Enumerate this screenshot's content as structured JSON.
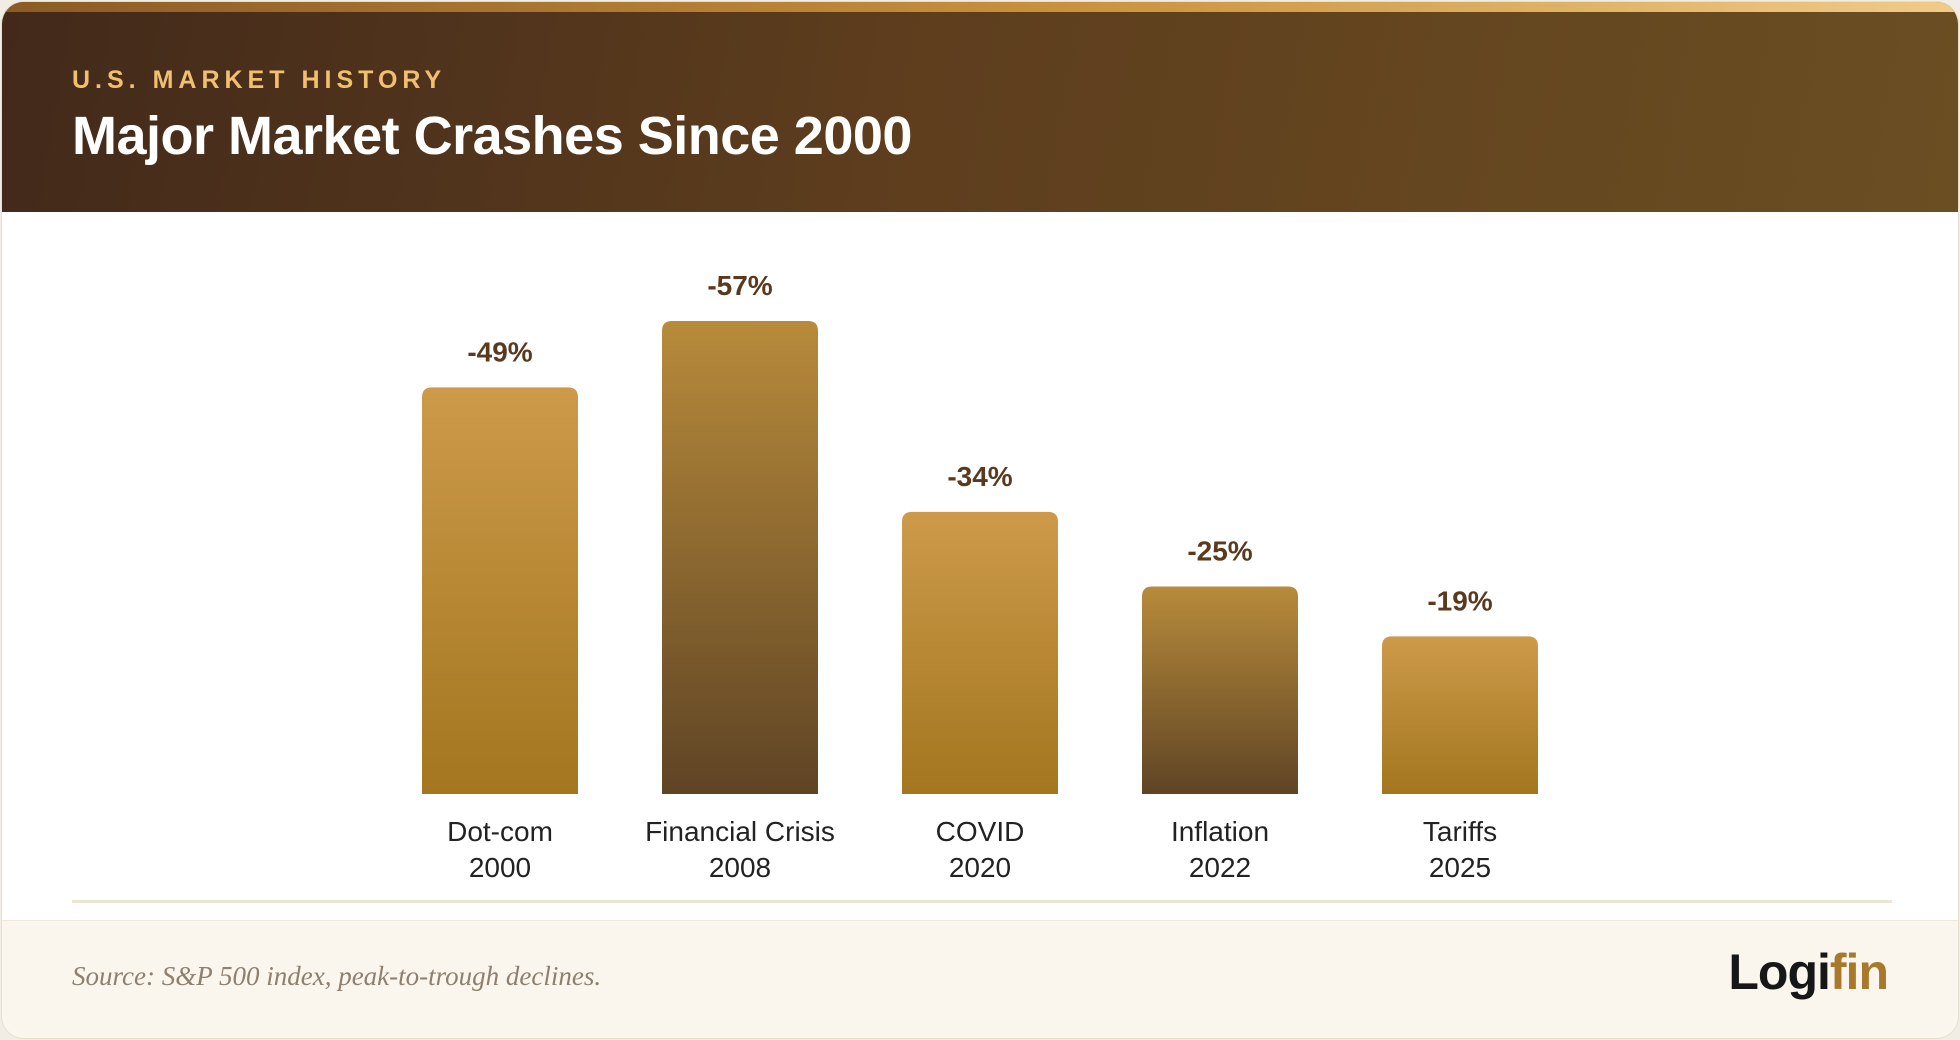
{
  "header": {
    "eyebrow": "U.S. MARKET HISTORY",
    "title": "Major Market Crashes Since 2000"
  },
  "chart_data": {
    "type": "bar",
    "title": "Major Market Crashes Since 2000",
    "xlabel": "",
    "ylabel": "",
    "categories": [
      "Dot-com 2000",
      "Financial Crisis 2008",
      "COVID 2020",
      "Inflation 2022",
      "Tariffs 2025"
    ],
    "category_lines": [
      [
        "Dot-com",
        "2000"
      ],
      [
        "Financial Crisis",
        "2008"
      ],
      [
        "COVID",
        "2020"
      ],
      [
        "Inflation",
        "2022"
      ],
      [
        "Tariffs",
        "2025"
      ]
    ],
    "values": [
      -49,
      -57,
      -34,
      -25,
      -19
    ],
    "data_labels": [
      "-49%",
      "-57%",
      "-34%",
      "-25%",
      "-19%"
    ],
    "ylim": [
      0,
      -57
    ],
    "grid": false,
    "legend": "none",
    "colors": {
      "light_bar_top": "#cd9a4a",
      "light_bar_bottom": "#a3761f",
      "dark_bar_top": "#b88b3b",
      "dark_bar_bottom": "#5f4425",
      "label": "#5a3a1f",
      "category": "#222222"
    }
  },
  "footer": {
    "source": "Source: S&P 500 index, peak-to-trough declines.",
    "logo_prefix": "Logi",
    "logo_suffix": "fin"
  }
}
